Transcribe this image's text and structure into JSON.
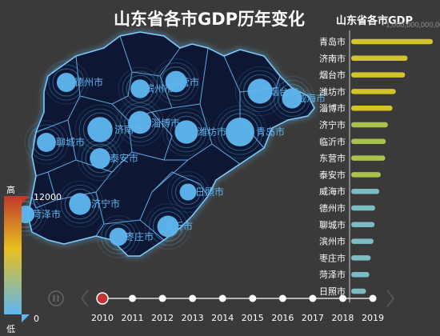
{
  "title": "山东省各市GDP历年变化",
  "subtitle": "山东省各市GDP",
  "x_axis_top_label": "1,000,000,000,000",
  "visual_map": {
    "max_label": "高",
    "min_label": "低",
    "max_value": "12000",
    "min_value": "0"
  },
  "timeline": {
    "years": [
      "2010",
      "2011",
      "2012",
      "2013",
      "2014",
      "2015",
      "2016",
      "2017",
      "2018",
      "2019"
    ],
    "current_index": 0
  },
  "colors": {
    "map_fill": "#0e1533",
    "map_border": "#7fd0ff",
    "bubble": "#5eb7f0",
    "bar_top": "#d9c72a",
    "bar_bottom": "#7dbfc8",
    "timeline_active": "#c23531"
  },
  "chart_data": {
    "type": "bar",
    "orientation": "horizontal",
    "categories": [
      "青岛市",
      "济南市",
      "烟台市",
      "潍坊市",
      "淄博市",
      "济宁市",
      "临沂市",
      "东营市",
      "泰安市",
      "威海市",
      "德州市",
      "聊城市",
      "滨州市",
      "枣庄市",
      "菏泽市",
      "日照市"
    ],
    "values": [
      5666,
      3911,
      3741,
      3090,
      2867,
      2543,
      2400,
      2359,
      2051,
      1944,
      1658,
      1622,
      1551,
      1349,
      1252,
      1023
    ],
    "cities_on_map": [
      {
        "name": "德州市",
        "size": 1658
      },
      {
        "name": "滨州市",
        "size": 1551
      },
      {
        "name": "东营市",
        "size": 2359
      },
      {
        "name": "烟台市",
        "size": 3741
      },
      {
        "name": "威海市",
        "size": 1944
      },
      {
        "name": "济南市",
        "size": 3911
      },
      {
        "name": "淄博市",
        "size": 2867
      },
      {
        "name": "潍坊市",
        "size": 3090
      },
      {
        "name": "青岛市",
        "size": 5666
      },
      {
        "name": "聊城市",
        "size": 1622
      },
      {
        "name": "泰安市",
        "size": 2051
      },
      {
        "name": "济宁市",
        "size": 2543
      },
      {
        "name": "菏泽市",
        "size": 1252
      },
      {
        "name": "日照市",
        "size": 1023
      },
      {
        "name": "临沂市",
        "size": 2400
      },
      {
        "name": "枣庄市",
        "size": 1349
      }
    ]
  }
}
